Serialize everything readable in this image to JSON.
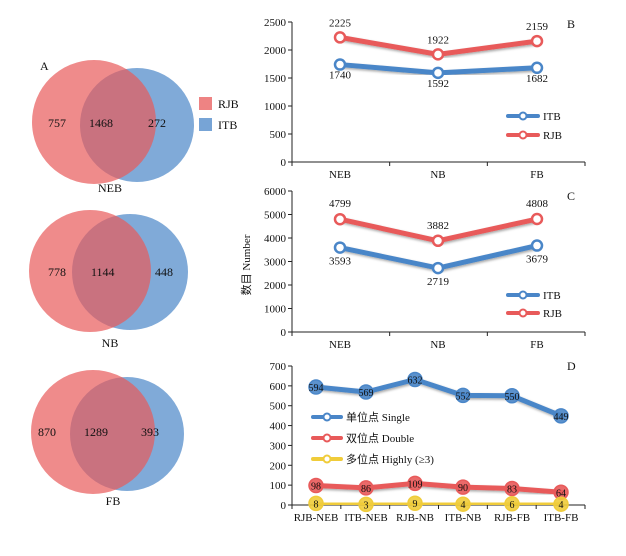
{
  "colors": {
    "rjb": "#e85a5a",
    "itb": "#4a86c8",
    "single": "#4a86c8",
    "double": "#e85a5a",
    "highly": "#f0cc3a"
  },
  "venn": {
    "legend": [
      "RJB",
      "ITB"
    ],
    "panels": [
      {
        "letter": "A",
        "name": "NEB",
        "rjb_only": "757",
        "shared": "1468",
        "itb_only": "272"
      },
      {
        "letter": "",
        "name": "NB",
        "rjb_only": "778",
        "shared": "1144",
        "itb_only": "448"
      },
      {
        "letter": "",
        "name": "FB",
        "rjb_only": "870",
        "shared": "1289",
        "itb_only": "393"
      }
    ]
  },
  "ylabel_shared": "数目 Number",
  "chart_data": [
    {
      "panel": "B",
      "type": "line",
      "categories": [
        "NEB",
        "NB",
        "FB"
      ],
      "series": [
        {
          "name": "ITB",
          "values": [
            1740,
            1592,
            1682
          ]
        },
        {
          "name": "RJB",
          "values": [
            2225,
            1922,
            2159
          ]
        }
      ],
      "ylim": [
        0,
        2500
      ],
      "yticks": [
        "0",
        "500",
        "1000",
        "1500",
        "2000",
        "2500"
      ],
      "legend_position": "bottom-right"
    },
    {
      "panel": "C",
      "type": "line",
      "categories": [
        "NEB",
        "NB",
        "FB"
      ],
      "series": [
        {
          "name": "ITB",
          "values": [
            3593,
            2719,
            3679
          ]
        },
        {
          "name": "RJB",
          "values": [
            4799,
            3882,
            4808
          ]
        }
      ],
      "ylim": [
        0,
        6000
      ],
      "yticks": [
        "0",
        "1000",
        "2000",
        "3000",
        "4000",
        "5000",
        "6000"
      ],
      "legend_position": "bottom-right"
    },
    {
      "panel": "D",
      "type": "line",
      "categories": [
        "RJB-NEB",
        "ITB-NEB",
        "RJB-NB",
        "ITB-NB",
        "RJB-FB",
        "ITB-FB"
      ],
      "series": [
        {
          "name": "单位点 Single",
          "values": [
            594,
            569,
            632,
            552,
            550,
            449
          ]
        },
        {
          "name": "双位点 Double",
          "values": [
            98,
            86,
            109,
            90,
            83,
            64
          ]
        },
        {
          "name": "多位点 Highly (≥3)",
          "values": [
            8,
            3,
            9,
            4,
            6,
            4
          ]
        }
      ],
      "ylim": [
        0,
        700
      ],
      "yticks": [
        "0",
        "100",
        "200",
        "300",
        "400",
        "500",
        "600",
        "700"
      ],
      "legend_position": "center-left"
    }
  ]
}
